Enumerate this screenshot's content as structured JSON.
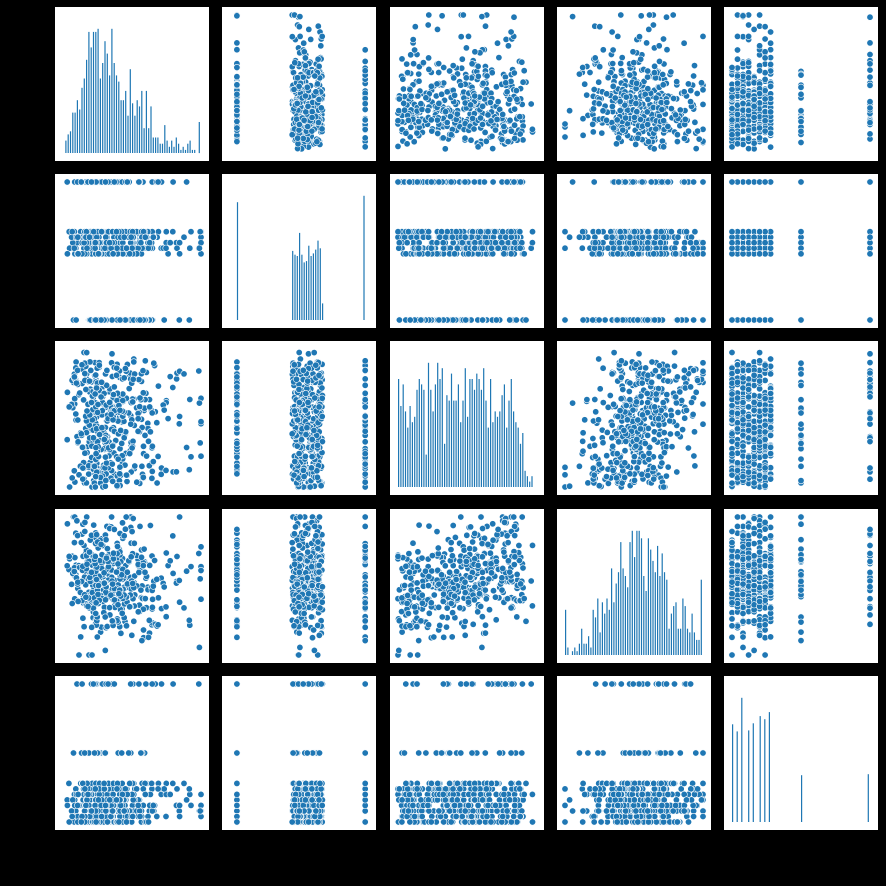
{
  "figure": {
    "background": "#000000"
  },
  "chart_data": {
    "type": "pairplot",
    "grid": {
      "rows": 5,
      "cols": 5
    },
    "diagonal": "histogram",
    "off_diagonal": "scatter",
    "color": "#1f77b4",
    "point_edge_color": "#ffffff",
    "axis_labels_visible": false,
    "tick_labels_visible": false,
    "legend": "none"
  }
}
